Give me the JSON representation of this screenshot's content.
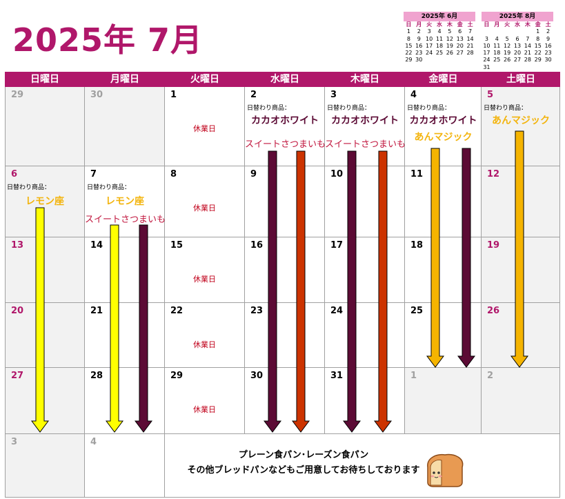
{
  "title": "2025年 7月",
  "mini_calendars": [
    {
      "title": "2025年 6月",
      "weekdays": [
        "日",
        "月",
        "火",
        "水",
        "木",
        "金",
        "土"
      ],
      "days": [
        "1",
        "2",
        "3",
        "4",
        "5",
        "6",
        "7",
        "8",
        "9",
        "10",
        "11",
        "12",
        "13",
        "14",
        "15",
        "16",
        "17",
        "18",
        "19",
        "20",
        "21",
        "22",
        "23",
        "24",
        "25",
        "26",
        "27",
        "28",
        "29",
        "30"
      ],
      "lead": 0
    },
    {
      "title": "2025年 8月",
      "weekdays": [
        "日",
        "月",
        "火",
        "水",
        "木",
        "金",
        "土"
      ],
      "days": [
        "1",
        "2",
        "3",
        "4",
        "5",
        "6",
        "7",
        "8",
        "9",
        "10",
        "11",
        "12",
        "13",
        "14",
        "15",
        "16",
        "17",
        "18",
        "19",
        "20",
        "21",
        "22",
        "23",
        "24",
        "25",
        "26",
        "27",
        "28",
        "29",
        "30",
        "31"
      ],
      "lead": 5
    }
  ],
  "weekdays": [
    "日曜日",
    "月曜日",
    "火曜日",
    "水曜日",
    "木曜日",
    "金曜日",
    "土曜日"
  ],
  "labels": {
    "daily_item": "日替わり商品：",
    "closed": "休業日",
    "cacao": "カカオホワイト",
    "sweet": "スイートさつまいも",
    "ann": "あんマジック",
    "lemon": "レモン座"
  },
  "weeks": [
    [
      "29",
      "30",
      "1",
      "2",
      "3",
      "4",
      "5"
    ],
    [
      "6",
      "7",
      "8",
      "9",
      "10",
      "11",
      "12"
    ],
    [
      "13",
      "14",
      "15",
      "16",
      "17",
      "18",
      "19"
    ],
    [
      "20",
      "21",
      "22",
      "23",
      "24",
      "25",
      "26"
    ],
    [
      "27",
      "28",
      "29",
      "30",
      "31",
      "1",
      "2"
    ],
    [
      "3",
      "4"
    ]
  ],
  "bottom": {
    "line1": "プレーン食パン･レーズン食パン",
    "line2": "その他ブレッドパンなどもご用意してお待ちしております"
  },
  "colors": {
    "accent": "#b0176a",
    "cacao": "#5c0b35",
    "sweet": "#cc3300",
    "ann": "#f5b400",
    "lemon": "#ffff00"
  }
}
